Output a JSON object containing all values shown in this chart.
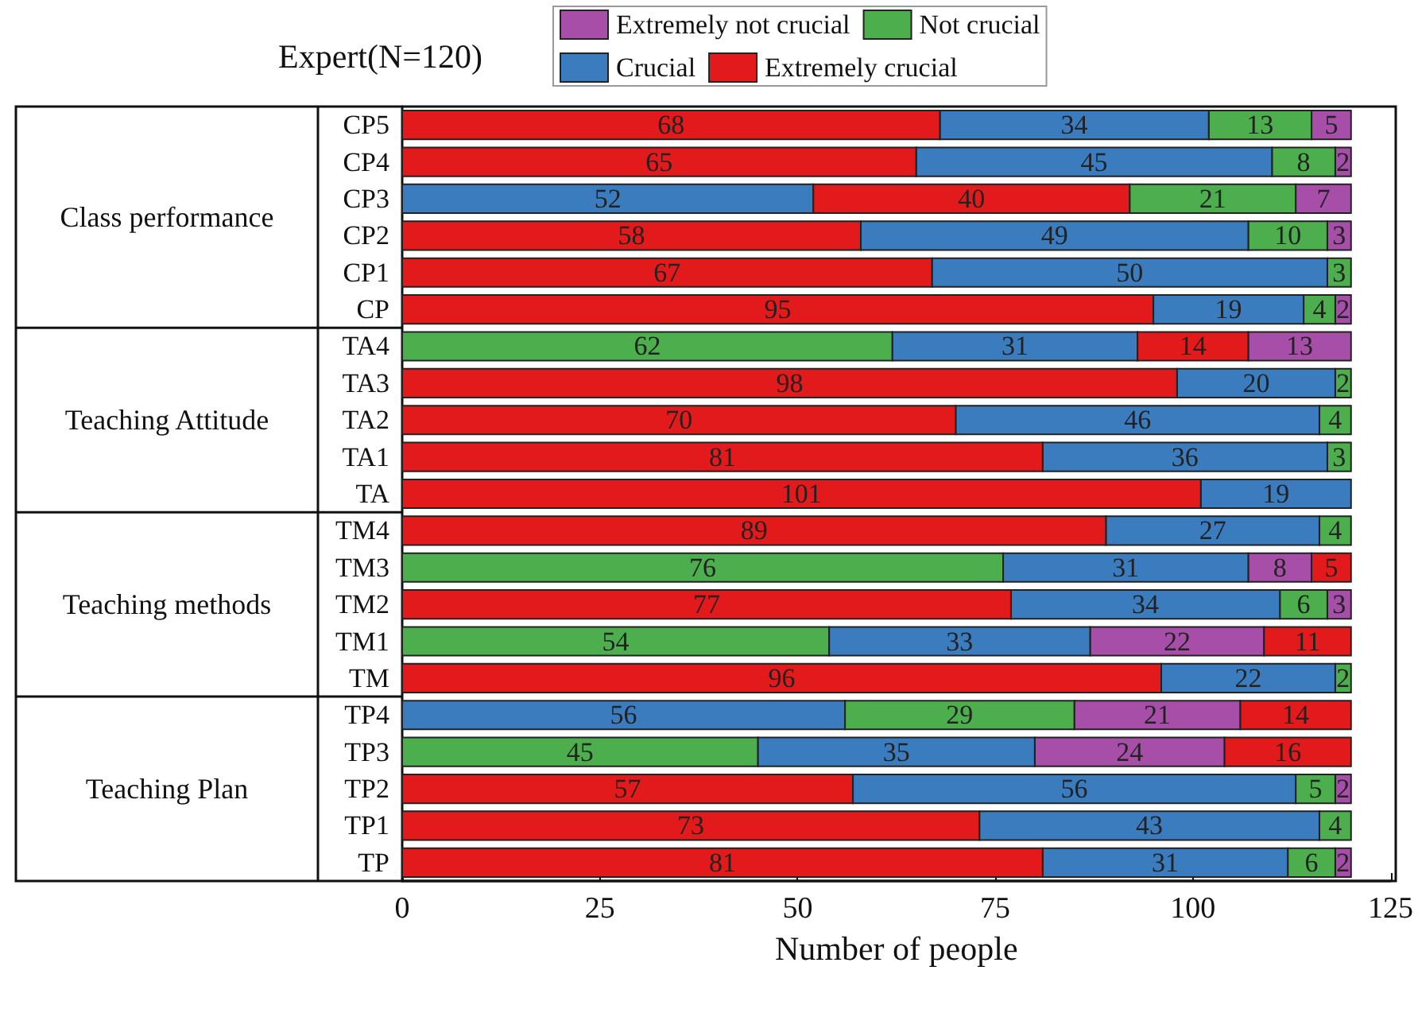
{
  "chart_data": {
    "type": "bar",
    "orientation": "horizontal",
    "title": "Expert(N=120)",
    "xlabel": "Number of people",
    "categories": [
      "CP5",
      "CP4",
      "CP3",
      "CP2",
      "CP1",
      "CP",
      "TA4",
      "TA3",
      "TA2",
      "TA1",
      "TA",
      "TM4",
      "TM3",
      "TM2",
      "TM1",
      "TM",
      "TP4",
      "TP3",
      "TP2",
      "TP1",
      "TP"
    ],
    "series": [
      {
        "name": "Extremely not crucial",
        "color": "#a64ea8",
        "values": [
          5,
          2,
          7,
          3,
          null,
          2,
          13,
          null,
          null,
          null,
          null,
          null,
          8,
          3,
          22,
          null,
          21,
          24,
          2,
          null,
          2
        ],
        "base": [
          115,
          118,
          113,
          117,
          null,
          118,
          107,
          null,
          null,
          null,
          null,
          null,
          107,
          117,
          87,
          null,
          85,
          80,
          118,
          null,
          118
        ]
      },
      {
        "name": "Not crucial",
        "color": "#4cae4c",
        "values": [
          13,
          8,
          21,
          10,
          3,
          4,
          62,
          2,
          4,
          3,
          null,
          4,
          76,
          6,
          54,
          2,
          29,
          45,
          5,
          4,
          6
        ],
        "base": [
          102,
          110,
          92,
          107,
          117,
          114,
          0,
          118,
          116,
          117,
          null,
          116,
          0,
          111,
          0,
          118,
          56,
          0,
          113,
          116,
          112
        ]
      },
      {
        "name": "Crucial",
        "color": "#3b7cbf",
        "values": [
          34,
          45,
          52,
          49,
          50,
          19,
          31,
          20,
          46,
          36,
          19,
          27,
          31,
          34,
          33,
          22,
          56,
          35,
          56,
          43,
          31
        ],
        "base": [
          68,
          65,
          0,
          58,
          67,
          95,
          62,
          98,
          70,
          81,
          101,
          89,
          76,
          77,
          54,
          96,
          0,
          45,
          57,
          73,
          81
        ]
      },
      {
        "name": "Extremely crucial",
        "color": "#e31a1c",
        "values": [
          68,
          65,
          40,
          58,
          67,
          95,
          14,
          98,
          70,
          81,
          101,
          89,
          5,
          77,
          11,
          96,
          14,
          16,
          57,
          73,
          81
        ],
        "base": [
          0,
          0,
          52,
          0,
          0,
          0,
          93,
          0,
          0,
          0,
          0,
          0,
          115,
          0,
          109,
          0,
          106,
          104,
          0,
          0,
          0
        ]
      }
    ],
    "xlim": [
      0,
      125
    ],
    "xticks": [
      0,
      25,
      50,
      75,
      100,
      125
    ],
    "annotations": [
      "Class performance",
      "Teaching Attitude",
      "Teaching methods",
      "Teaching Plan"
    ],
    "data_labels": true,
    "legend": "top",
    "grid": false
  }
}
